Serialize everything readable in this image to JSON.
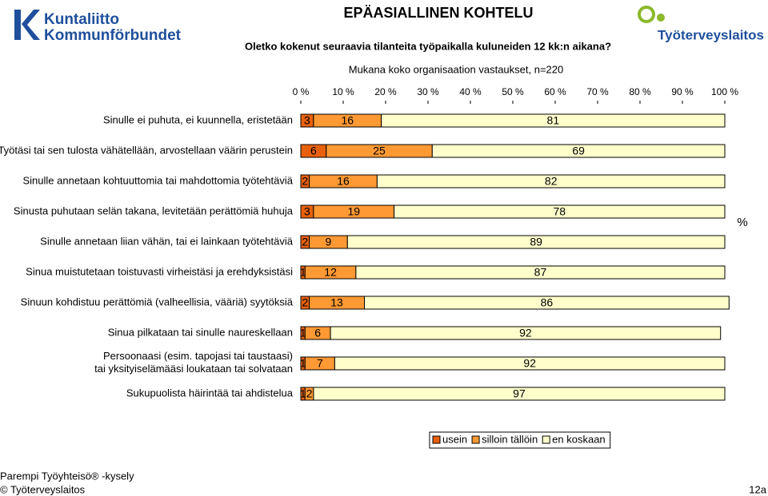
{
  "header": {
    "logo_left": [
      "Kuntaliitto",
      "Kommunförbundet"
    ],
    "logo_right": "Työterveyslaitos"
  },
  "chart_data": {
    "type": "stacked-barh",
    "title": "EPÄASIALLINEN KOHTELU",
    "subtitle": "Oletko kokenut seuraavia tilanteita työpaikalla kuluneiden 12 kk:n aikana?",
    "note": "Mukana koko organisaation vastaukset, n=220",
    "x_label": "%",
    "categories": [
      "Sinulle ei puhuta, ei kuunnella, eristetään",
      "Työtäsi tai sen tulosta vähätellään, arvostellaan väärin perustein",
      "Sinulle annetaan kohtuuttomia tai mahdottomia työtehtäviä",
      "Sinusta puhutaan selän takana, levitetään perättömiä huhuja",
      "Sinulle annetaan liian vähän, tai ei lainkaan työtehtäviä",
      "Sinua muistutetaan toistuvasti virheistäsi ja erehdyksistäsi",
      "Sinuun kohdistuu perättömiä (valheellisia, vääriä) syytöksiä",
      "Sinua pilkataan tai sinulle naureskellaan",
      "Persoonaasi (esim. tapojasi tai taustaasi)\ntai yksityiselämääsi loukataan tai solvataan",
      "Sukupuolista häirintää tai ahdistelua"
    ],
    "series": [
      {
        "name": "usein",
        "color": "#e8600c",
        "values": [
          3,
          6,
          2,
          3,
          2,
          1,
          2,
          1,
          1,
          1
        ]
      },
      {
        "name": "silloin tällöin",
        "color": "#ff9933",
        "values": [
          16,
          25,
          16,
          19,
          9,
          12,
          13,
          6,
          7,
          2
        ]
      },
      {
        "name": "en koskaan",
        "color": "#ffffcc",
        "values": [
          81,
          69,
          82,
          78,
          89,
          87,
          86,
          92,
          92,
          97
        ]
      }
    ],
    "xlim": [
      0,
      100
    ],
    "xticks": [
      {
        "value": 0,
        "label": "0 %"
      },
      {
        "value": 10,
        "label": "10 %"
      },
      {
        "value": 20,
        "label": "20 %"
      },
      {
        "value": 30,
        "label": "30 %"
      },
      {
        "value": 40,
        "label": "40 %"
      },
      {
        "value": 50,
        "label": "50 %"
      },
      {
        "value": 60,
        "label": "60 %"
      },
      {
        "value": 70,
        "label": "70 %"
      },
      {
        "value": 80,
        "label": "80 %"
      },
      {
        "value": 90,
        "label": "90 %"
      },
      {
        "value": 100,
        "label": "100 %"
      }
    ],
    "legend": "bottom"
  },
  "footer": {
    "survey": "Parempi Työyhteisö® -kysely",
    "copyright": "© Työterveyslaitos",
    "page": "12a"
  }
}
